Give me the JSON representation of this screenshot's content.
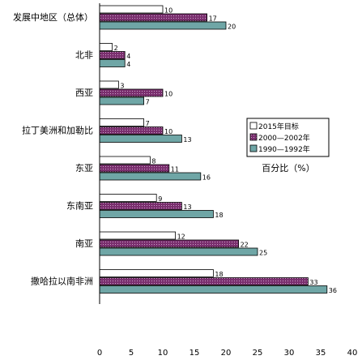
{
  "chart_data": {
    "type": "bar",
    "orientation": "horizontal",
    "title": "",
    "xlabel": "",
    "ylabel": "",
    "xlim": [
      0,
      40
    ],
    "x_ticks": [
      0,
      5,
      10,
      15,
      20,
      25,
      30,
      35,
      40
    ],
    "grid": false,
    "legend_position": "right",
    "unit_label": "百分比（%）",
    "categories": [
      "发展中地区（总体）",
      "北非",
      "西亚",
      "拉丁美洲和加勒比",
      "东亚",
      "东南亚",
      "南亚",
      "撒哈拉以南非洲"
    ],
    "series": [
      {
        "name": "2015年目标",
        "values": [
          10,
          2,
          3,
          7,
          8,
          9,
          12,
          18
        ],
        "color": "#ffffff",
        "pattern": "none"
      },
      {
        "name": "2000—2002年",
        "values": [
          17,
          4,
          10,
          10,
          11,
          13,
          22,
          33
        ],
        "color": "#7a2f6e",
        "pattern": "dots"
      },
      {
        "name": "1990—1992年",
        "values": [
          20,
          4,
          7,
          13,
          16,
          18,
          25,
          36
        ],
        "color": "#6fa6a6",
        "pattern": "none"
      }
    ]
  }
}
